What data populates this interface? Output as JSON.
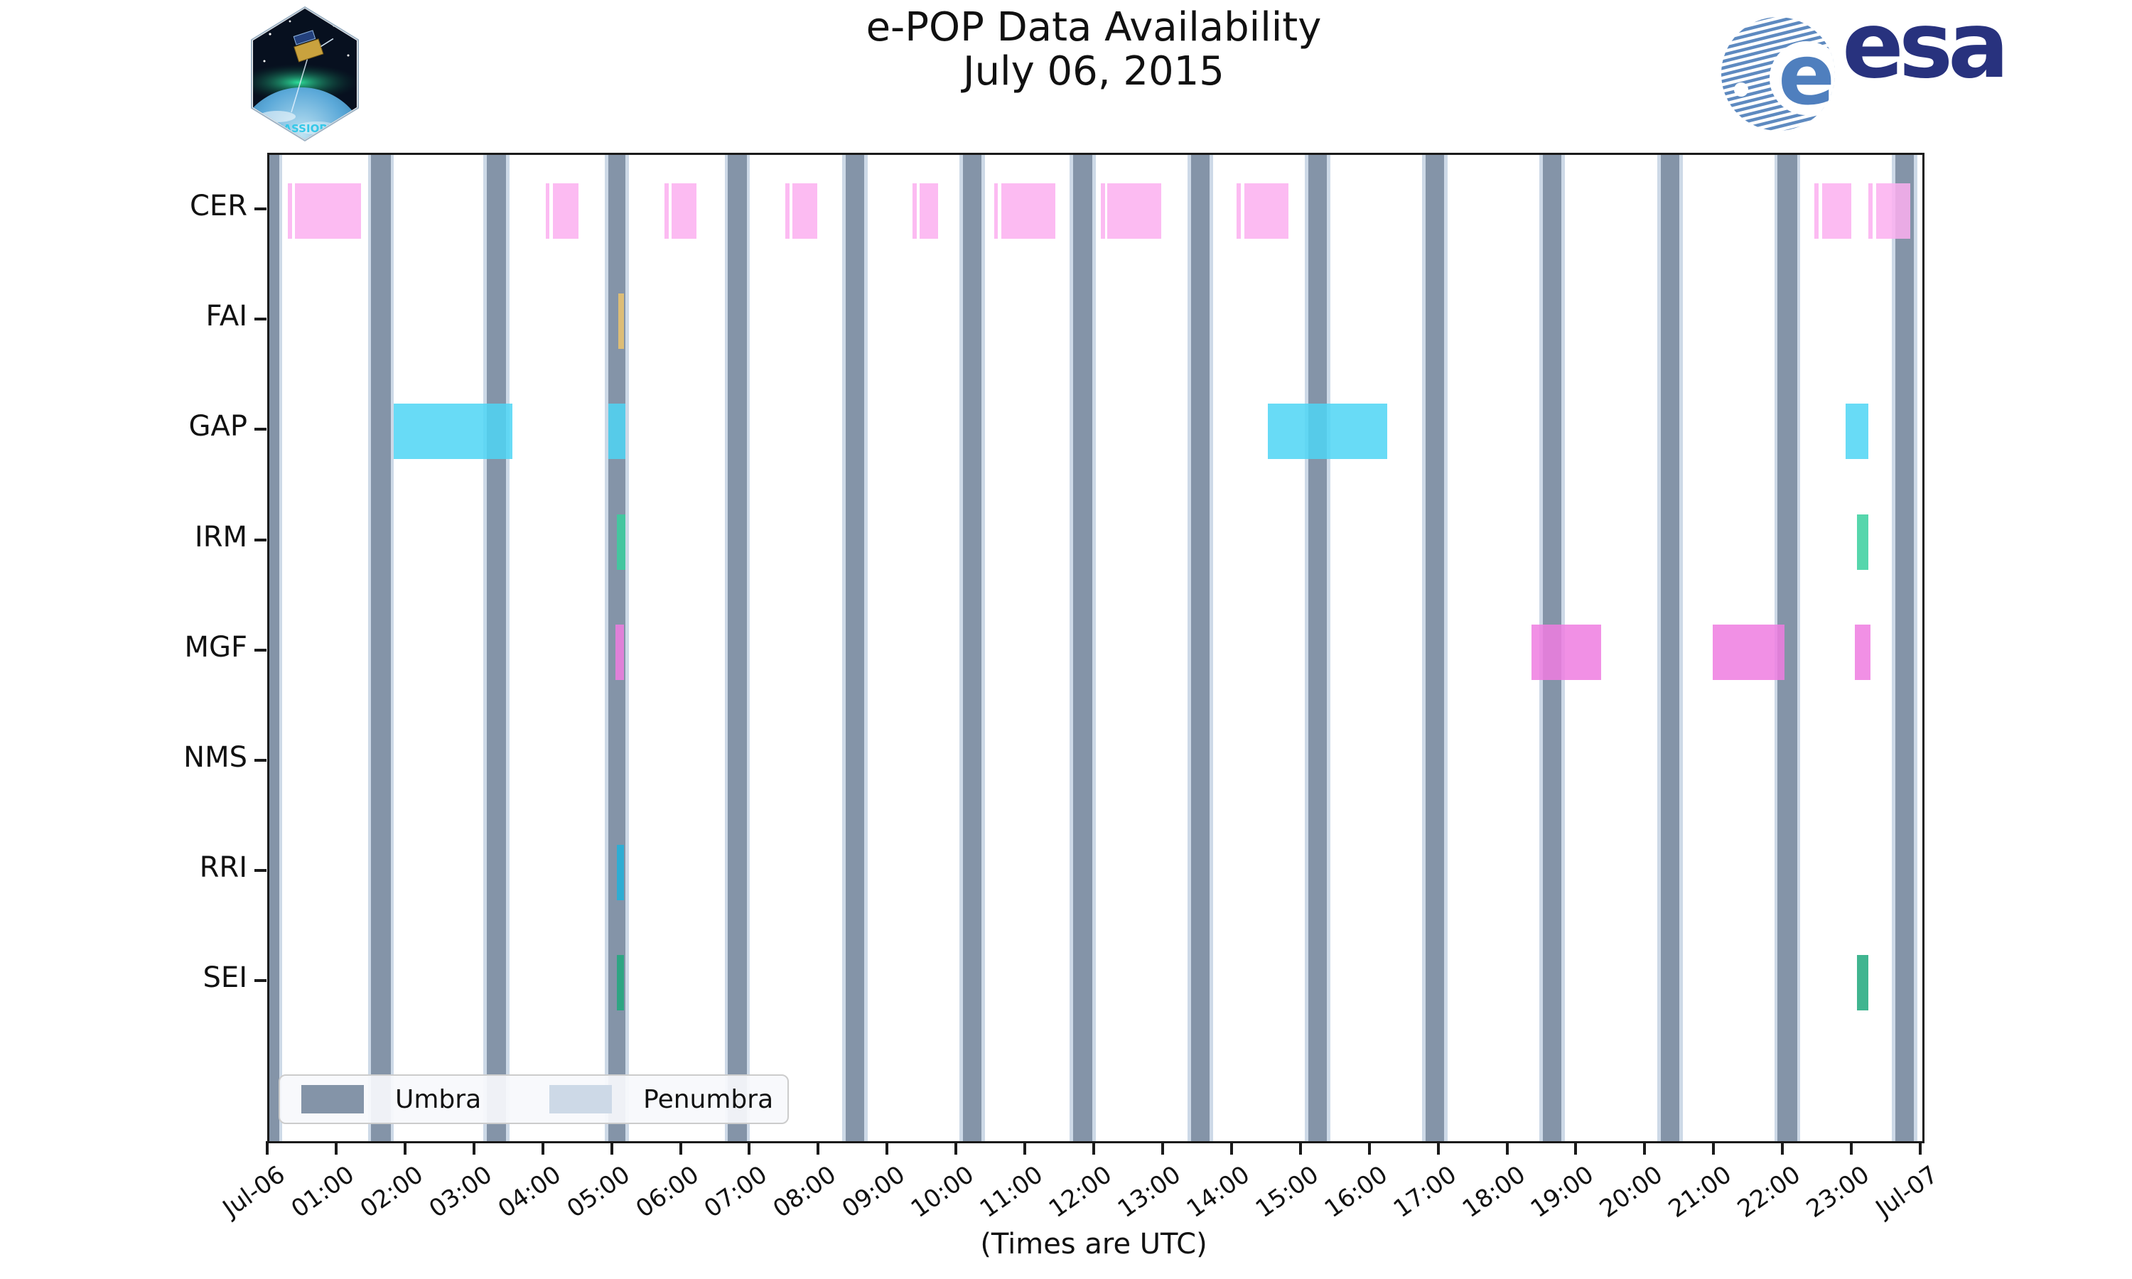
{
  "header": {
    "title": "e-POP Data Availability",
    "subtitle": "July 06, 2015",
    "cassiope_logo_text": "CASSIOPE",
    "esa_logo_text": "esa"
  },
  "footer": {
    "axis_note": "(Times are UTC)"
  },
  "colors": {
    "umbra": "#8494a8",
    "penumbra": "#cdd9e7",
    "plot_border": "#1a1a1a",
    "esa_navy": "#28327e",
    "esa_stripe": "#5e8ac0",
    "cassiope_text": "#35c8e8"
  },
  "legend": {
    "items": [
      {
        "label": "Umbra",
        "color": "#8494a8"
      },
      {
        "label": "Penumbra",
        "color": "#cdd9e7"
      }
    ]
  },
  "chart_data": {
    "type": "bar",
    "subtype": "horizontal-timeline-availability",
    "title": "e-POP Data Availability",
    "subtitle": "July 06, 2015",
    "xlabel": "(Times are UTC)",
    "x_axis": {
      "unit": "decimal hours UTC, 2015-07-06",
      "range": [
        0,
        24
      ],
      "tick_hours": [
        0,
        1,
        2,
        3,
        4,
        5,
        6,
        7,
        8,
        9,
        10,
        11,
        12,
        13,
        14,
        15,
        16,
        17,
        18,
        19,
        20,
        21,
        22,
        23,
        24
      ],
      "tick_labels": [
        "Jul-06",
        "01:00",
        "02:00",
        "03:00",
        "04:00",
        "05:00",
        "06:00",
        "07:00",
        "08:00",
        "09:00",
        "10:00",
        "11:00",
        "12:00",
        "13:00",
        "14:00",
        "15:00",
        "16:00",
        "17:00",
        "18:00",
        "19:00",
        "20:00",
        "21:00",
        "22:00",
        "23:00",
        "Jul-07"
      ]
    },
    "y_axis": {
      "rows": [
        "CER",
        "FAI",
        "GAP",
        "IRM",
        "MGF",
        "NMS",
        "RRI",
        "SEI"
      ]
    },
    "bar_opacity": 0.85,
    "grid": false,
    "legend_position": "lower-left",
    "rows": [
      {
        "label": "CER",
        "color": "#fbaff0",
        "intervals": [
          [
            0.27,
            0.33
          ],
          [
            0.37,
            1.33
          ],
          [
            4.01,
            4.07
          ],
          [
            4.12,
            4.49
          ],
          [
            5.74,
            5.8
          ],
          [
            5.84,
            6.2
          ],
          [
            7.49,
            7.55
          ],
          [
            7.59,
            7.96
          ],
          [
            9.34,
            9.4
          ],
          [
            9.44,
            9.71
          ],
          [
            10.52,
            10.58
          ],
          [
            10.63,
            11.41
          ],
          [
            12.07,
            12.13
          ],
          [
            12.17,
            12.95
          ],
          [
            14.04,
            14.1
          ],
          [
            14.16,
            14.8
          ],
          [
            22.43,
            22.49
          ],
          [
            22.54,
            22.97
          ],
          [
            23.22,
            23.28
          ],
          [
            23.33,
            23.82
          ]
        ]
      },
      {
        "label": "FAI",
        "color": "#ecc46d",
        "intervals": [
          [
            5.07,
            5.15
          ]
        ]
      },
      {
        "label": "GAP",
        "color": "#4ed5f5",
        "intervals": [
          [
            1.81,
            3.53
          ],
          [
            4.92,
            5.17
          ],
          [
            14.5,
            16.23
          ],
          [
            22.89,
            23.22
          ]
        ]
      },
      {
        "label": "IRM",
        "color": "#38cf9d",
        "intervals": [
          [
            5.05,
            5.17
          ],
          [
            23.05,
            23.22
          ]
        ]
      },
      {
        "label": "MGF",
        "color": "#ee7ce1",
        "intervals": [
          [
            5.03,
            5.15
          ],
          [
            18.33,
            19.34
          ],
          [
            20.96,
            22.0
          ],
          [
            23.02,
            23.25
          ]
        ]
      },
      {
        "label": "NMS",
        "color": "#cccccc",
        "intervals": []
      },
      {
        "label": "RRI",
        "color": "#1eb1da",
        "intervals": [
          [
            5.05,
            5.15
          ]
        ]
      },
      {
        "label": "SEI",
        "color": "#1fa87c",
        "intervals": [
          [
            5.05,
            5.15
          ],
          [
            23.05,
            23.22
          ]
        ]
      }
    ],
    "umbra": {
      "label": "Umbra",
      "color": "#8494a8",
      "intervals": [
        [
          0.0,
          0.14
        ],
        [
          1.48,
          1.76
        ],
        [
          3.16,
          3.44
        ],
        [
          4.92,
          5.17
        ],
        [
          6.66,
          6.93
        ],
        [
          8.37,
          8.64
        ],
        [
          10.07,
          10.34
        ],
        [
          11.67,
          11.95
        ],
        [
          13.38,
          13.65
        ],
        [
          15.08,
          15.35
        ],
        [
          16.79,
          17.06
        ],
        [
          18.49,
          18.76
        ],
        [
          20.2,
          20.47
        ],
        [
          21.9,
          22.18
        ],
        [
          23.61,
          23.88
        ]
      ]
    },
    "penumbra": {
      "label": "Penumbra",
      "color": "#cdd9e7",
      "edge_width_hours": 0.05
    }
  }
}
